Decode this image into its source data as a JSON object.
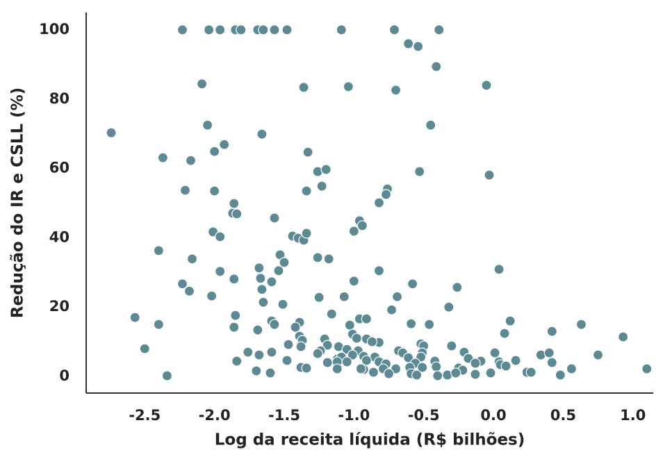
{
  "chart_data": {
    "type": "scatter",
    "x_label": "Log da receita líquida (R$ bilhões)",
    "y_label": "Redução do IR e CSLL (%)",
    "color": "#5b8a94",
    "xlim": [
      -2.92,
      1.146
    ],
    "ylim": [
      -4.8,
      105
    ],
    "xticks": [
      -2.5,
      {
        "value": -2,
        "label": "-2.0"
      },
      -1.5,
      {
        "value": -1,
        "label": "-1.0"
      },
      -0.5,
      {
        "value": 0,
        "label": "0.0"
      },
      0.5,
      {
        "value": 1,
        "label": "1.0"
      }
    ],
    "yticks": [
      0,
      20,
      40,
      60,
      80,
      100
    ],
    "x": [
      -2.23,
      -2.04,
      -1.96,
      -1.85,
      -1.81,
      -1.69,
      -1.65,
      -1.57,
      -1.48,
      -1.09,
      -0.71,
      -0.39,
      -0.61,
      -0.54,
      -0.41,
      -2.09,
      -1.36,
      -1.04,
      -0.7,
      -0.05,
      -2.74,
      -2.05,
      -1.66,
      -0.45,
      -1.93,
      -2.0,
      -1.33,
      -2.37,
      -2.17,
      -1.26,
      -1.2,
      -0.53,
      -0.03,
      -2.21,
      -2.0,
      -1.34,
      -1.23,
      -0.76,
      -0.77,
      -0.82,
      -1.86,
      -1.87,
      -1.84,
      -1.57,
      -0.96,
      -0.94,
      -1.0,
      -2.01,
      -1.96,
      -1.44,
      -1.4,
      -1.36,
      -1.34,
      -2.4,
      -1.53,
      -1.5,
      -2.16,
      -1.26,
      -1.18,
      -1.68,
      -1.96,
      -1.54,
      -0.82,
      0.04,
      -1.67,
      -1.86,
      -1.59,
      -1.0,
      -2.23,
      -0.58,
      -1.66,
      -0.26,
      -2.18,
      -2.02,
      -1.25,
      -1.07,
      -0.69,
      -1.65,
      -1.51,
      -0.32,
      -0.73,
      -2.57,
      -1.85,
      -1.16,
      -0.96,
      -0.91,
      -1.59,
      -1.57,
      -1.39,
      -1.42,
      -2.4,
      -1.86,
      -1.69,
      -1.03,
      -0.59,
      -0.46,
      0.12,
      0.63,
      0.42,
      0.08,
      -1.01,
      -0.98,
      -0.91,
      -1.39,
      -1.37,
      -1.21,
      0.93,
      -0.82,
      -0.87,
      -1.47,
      -1.38,
      -1.19,
      -1.11,
      -0.52,
      -0.5,
      -0.3,
      -2.5,
      -1.05,
      -0.97,
      -1.24,
      -0.68,
      -0.65,
      -1.76,
      -1.59,
      -1.68,
      -1.26,
      -1.01,
      -0.51,
      -0.52,
      -0.21,
      0.01,
      0.34,
      0.4,
      0.75,
      -0.93,
      -0.85,
      -0.61,
      -0.18,
      -1.12,
      -1.09,
      -1.84,
      -1.48,
      -1.19,
      -1.12,
      -1.05,
      -0.91,
      -0.82,
      -0.77,
      -0.56,
      -0.42,
      -0.09,
      0.04,
      0.16,
      0.42,
      -0.13,
      0.05,
      0.09,
      -0.41,
      -1.38,
      -1.34,
      -1.12,
      -0.93,
      -0.79,
      -0.7,
      -0.6,
      -0.51,
      -0.25,
      -0.22,
      0.56,
      1.1,
      -1.7,
      -1.6,
      -0.86,
      -0.75,
      -0.59,
      -0.55,
      -0.4,
      -0.33,
      -0.13,
      -0.02,
      0.24,
      0.27,
      0.48,
      -2.34,
      -0.95,
      -0.27
    ],
    "values": [
      100,
      100,
      100,
      100,
      100,
      100,
      100,
      100,
      100,
      100,
      100,
      100,
      96.0,
      95.2,
      89.4,
      84.4,
      83.4,
      83.6,
      82.6,
      84.0,
      70.3,
      72.5,
      69.9,
      72.5,
      66.9,
      64.9,
      64.7,
      63.1,
      62.3,
      59.1,
      59.7,
      59.1,
      58.1,
      53.7,
      53.5,
      53.5,
      54.9,
      54.1,
      52.5,
      50.1,
      49.9,
      47.1,
      46.9,
      45.7,
      44.9,
      43.5,
      41.9,
      41.7,
      40.3,
      40.5,
      39.9,
      39.3,
      41.3,
      36.3,
      35.1,
      32.9,
      33.9,
      34.3,
      33.9,
      31.3,
      30.3,
      30.5,
      30.5,
      30.9,
      28.3,
      28.1,
      27.3,
      27.5,
      26.7,
      26.7,
      25.1,
      25.7,
      24.6,
      23.2,
      22.8,
      23.0,
      23.0,
      21.4,
      20.8,
      20.0,
      19.2,
      17.0,
      17.6,
      18.0,
      16.6,
      16.6,
      16.0,
      15.0,
      15.6,
      14.2,
      15.0,
      14.2,
      13.4,
      14.8,
      15.2,
      15.0,
      16.0,
      15.0,
      13.0,
      12.4,
      12.2,
      11.0,
      10.8,
      11.6,
      10.4,
      10.8,
      11.4,
      9.8,
      10.0,
      9.2,
      8.6,
      9.0,
      8.6,
      9.4,
      8.8,
      8.8,
      8.0,
      7.8,
      7.4,
      7.4,
      7.4,
      6.8,
      7.0,
      7.0,
      6.2,
      6.6,
      6.2,
      6.8,
      5.6,
      7.0,
      6.8,
      6.2,
      6.8,
      6.2,
      5.8,
      5.6,
      5.4,
      5.2,
      5.0,
      5.6,
      4.4,
      4.6,
      4.0,
      4.2,
      4.2,
      4.6,
      4.2,
      3.6,
      3.8,
      4.4,
      4.4,
      4.2,
      4.6,
      4.0,
      3.8,
      3.4,
      3.0,
      2.8,
      2.6,
      2.4,
      2.2,
      2.0,
      2.2,
      2.2,
      2.6,
      2.6,
      2.4,
      1.8,
      2.2,
      2.2,
      1.6,
      1.0,
      1.2,
      0.8,
      0.8,
      0.4,
      0.2,
      0.4,
      0.6,
      1.0,
      1.2,
      1.2,
      0.4,
      0.2,
      2.2,
      1.0
    ]
  }
}
